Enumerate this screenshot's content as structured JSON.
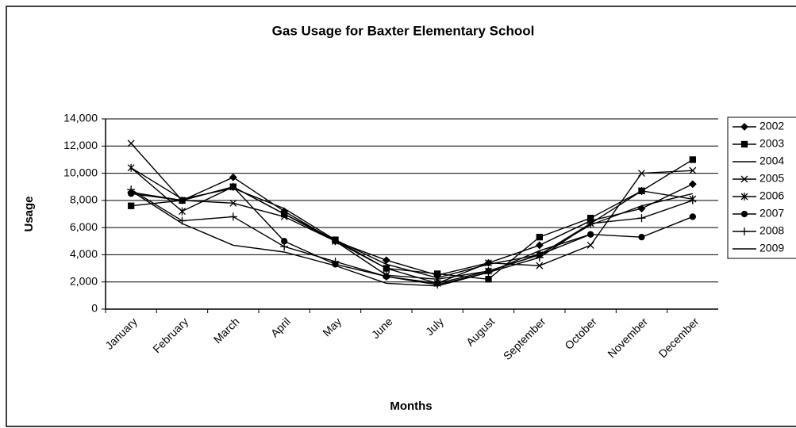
{
  "chart_data": {
    "type": "line",
    "title": "Gas Usage for Baxter Elementary School",
    "x_label": "Months",
    "y_label": "Usage",
    "categories": [
      "January",
      "February",
      "March",
      "April",
      "May",
      "June",
      "July",
      "August",
      "September",
      "October",
      "November",
      "December"
    ],
    "ylim": [
      0,
      14000
    ],
    "yticks": [
      0,
      {
        "value": 2000,
        "label": "2,000"
      },
      {
        "value": 4000,
        "label": "4,000"
      },
      {
        "value": 6000,
        "label": "6,000"
      },
      {
        "value": 8000,
        "label": "8,000"
      },
      {
        "value": 10000,
        "label": "10,000"
      },
      {
        "value": 12000,
        "label": "12,000"
      },
      {
        "value": 14000,
        "label": "14,000"
      }
    ],
    "grid": true,
    "legend": "right",
    "series": [
      {
        "name": "2002",
        "color": "#000000",
        "marker": "diamond",
        "values": [
          8600,
          8000,
          9700,
          7200,
          5000,
          3600,
          2500,
          3400,
          4700,
          6500,
          7400,
          9200
        ]
      },
      {
        "name": "2003",
        "color": "#000000",
        "marker": "square",
        "values": [
          7600,
          8000,
          9000,
          7000,
          5100,
          3000,
          2600,
          2200,
          5300,
          6700,
          8700,
          11000
        ]
      },
      {
        "name": "2004",
        "color": "#000000",
        "marker": "none",
        "values": [
          10400,
          8100,
          8900,
          7400,
          5100,
          3300,
          2300,
          3300,
          4000,
          6200,
          7600,
          8500
        ]
      },
      {
        "name": "2005",
        "color": "#000000",
        "marker": "x",
        "values": [
          12200,
          8000,
          7800,
          6800,
          5000,
          3000,
          1900,
          3400,
          3200,
          4700,
          10000,
          10200
        ]
      },
      {
        "name": "2006",
        "color": "#000000",
        "marker": "star",
        "values": [
          10400,
          7200,
          9000,
          7000,
          5000,
          2500,
          2200,
          2800,
          4000,
          6300,
          8700,
          8100
        ]
      },
      {
        "name": "2007",
        "color": "#000000",
        "marker": "circle",
        "values": [
          8500,
          8000,
          9000,
          5000,
          3300,
          2400,
          1900,
          2800,
          4000,
          5500,
          5300,
          6800
        ]
      },
      {
        "name": "2008",
        "color": "#000000",
        "marker": "plus",
        "values": [
          8800,
          6500,
          6800,
          4600,
          3500,
          2400,
          1800,
          2700,
          3800,
          6300,
          6700,
          8000
        ]
      },
      {
        "name": "2009",
        "color": "#000000",
        "marker": "none",
        "values": [
          8700,
          6300,
          4700,
          4200,
          3200,
          1900,
          1700,
          2700,
          4300,
          5500,
          null,
          null
        ]
      }
    ]
  }
}
